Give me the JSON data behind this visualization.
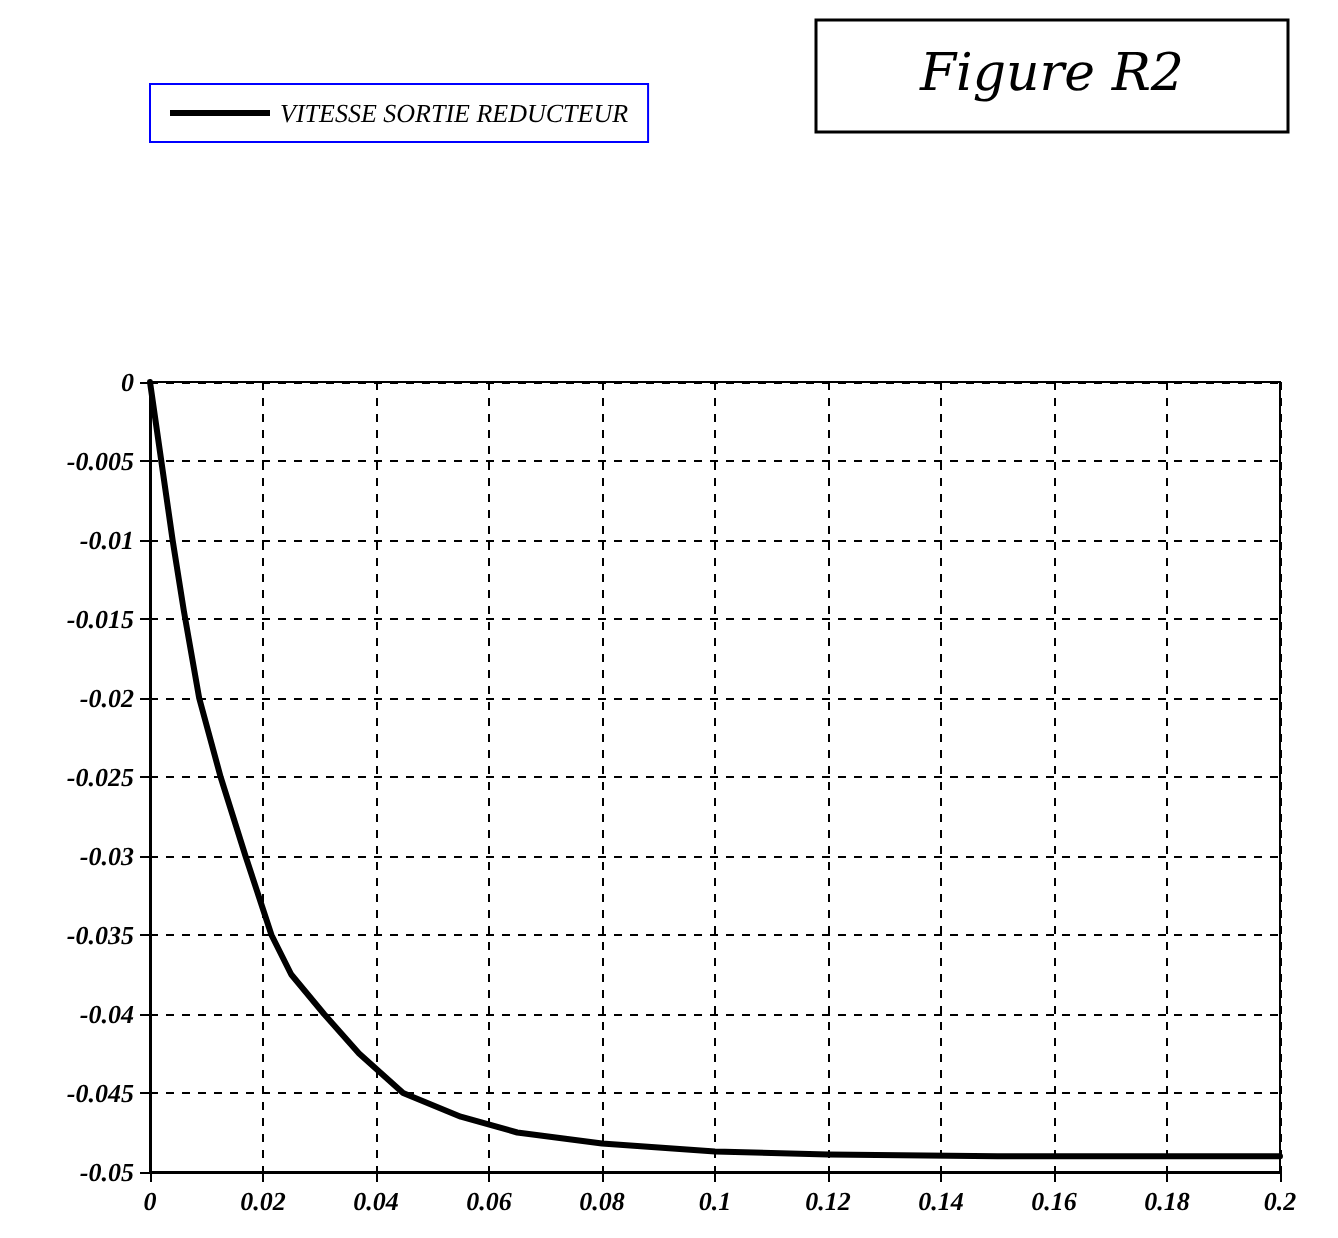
{
  "chart_data": {
    "type": "line",
    "title": "Figure R2",
    "x": [
      0,
      0.002,
      0.004,
      0.006,
      0.0087,
      0.0125,
      0.0169,
      0.0215,
      0.025,
      0.0308,
      0.037,
      0.0448,
      0.055,
      0.065,
      0.08,
      0.1,
      0.12,
      0.15,
      0.2
    ],
    "series": [
      {
        "name": "VITESSE SORTIE REDUCTEUR",
        "color": "#000000",
        "values": [
          0,
          -0.005,
          -0.01,
          -0.0145,
          -0.02,
          -0.025,
          -0.03,
          -0.035,
          -0.0375,
          -0.04,
          -0.0425,
          -0.045,
          -0.0465,
          -0.0475,
          -0.0482,
          -0.0487,
          -0.0489,
          -0.049,
          -0.049
        ]
      }
    ],
    "xlim": [
      0,
      0.2
    ],
    "xticks": [
      0,
      0.02,
      0.04,
      0.06,
      0.08,
      0.1,
      0.12,
      0.14,
      0.16,
      0.18,
      0.2
    ],
    "ylim": [
      -0.05,
      0
    ],
    "yticks": [
      -0.05,
      -0.045,
      -0.04,
      -0.035,
      -0.03,
      -0.025,
      -0.02,
      -0.015,
      -0.01,
      -0.005,
      0
    ],
    "grid": true,
    "legend": "top left",
    "marker": "none",
    "line_style": "solid"
  }
}
